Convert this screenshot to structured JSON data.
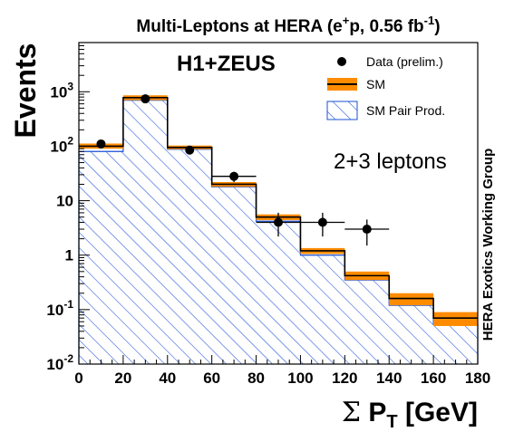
{
  "chart_data": {
    "type": "bar",
    "title": "Multi-Leptons at HERA (e",
    "title_sup1": "+",
    "title_mid": "p, 0.56 fb",
    "title_sup2": "-1",
    "title_end": ")",
    "collab": "H1+ZEUS",
    "channel": "2+3 leptons",
    "side_text": "HERA Exotics Working Group",
    "ylabel": "Events",
    "xlabel_sigma": "Σ",
    "xlabel_p": "P",
    "xlabel_sub": "T",
    "xlabel_unit": "[GeV]",
    "xlim": [
      0,
      180
    ],
    "ylim": [
      0.01,
      8000
    ],
    "y_scale": "log",
    "legend_position": "top-right",
    "legend": {
      "data": "Data (prelim.)",
      "sm": "SM",
      "pair": "SM Pair Prod."
    },
    "x_ticks": [
      "0",
      "20",
      "40",
      "60",
      "80",
      "100",
      "120",
      "140",
      "160",
      "180"
    ],
    "y_ticks": [
      {
        "value": 0.01,
        "base": "10",
        "exp": "-2"
      },
      {
        "value": 0.1,
        "base": "10",
        "exp": "-1"
      },
      {
        "value": 1,
        "base": "1",
        "exp": ""
      },
      {
        "value": 10,
        "base": "10",
        "exp": ""
      },
      {
        "value": 100,
        "base": "10",
        "exp": "2"
      },
      {
        "value": 1000,
        "base": "10",
        "exp": "3"
      }
    ],
    "bin_edges": [
      0,
      20,
      40,
      60,
      80,
      100,
      120,
      140,
      160,
      180
    ],
    "sm": [
      100,
      780,
      95,
      20,
      5.0,
      1.2,
      0.42,
      0.16,
      0.07
    ],
    "sm_err_low": [
      90,
      700,
      88,
      18,
      4.4,
      1.05,
      0.35,
      0.12,
      0.05
    ],
    "sm_err_high": [
      112,
      860,
      103,
      22,
      5.6,
      1.35,
      0.5,
      0.2,
      0.09
    ],
    "pair_prod": [
      80,
      700,
      88,
      18,
      4.2,
      1.0,
      0.35,
      0.12,
      0.055
    ],
    "data": {
      "x": [
        10,
        30,
        50,
        70,
        90,
        110,
        130
      ],
      "y": [
        110,
        740,
        85,
        28,
        4,
        4,
        3
      ],
      "y_low": [
        97,
        700,
        75,
        22,
        2.2,
        2.2,
        1.5
      ],
      "y_high": [
        125,
        780,
        95,
        34,
        6.0,
        6.0,
        4.5
      ],
      "x_err": [
        0,
        0,
        0,
        10,
        10,
        10,
        10
      ]
    },
    "colors": {
      "sm_band": "#ff8c00",
      "sm_line": "#000000",
      "hatch": "#1a4fd6",
      "data": "#000000"
    }
  }
}
